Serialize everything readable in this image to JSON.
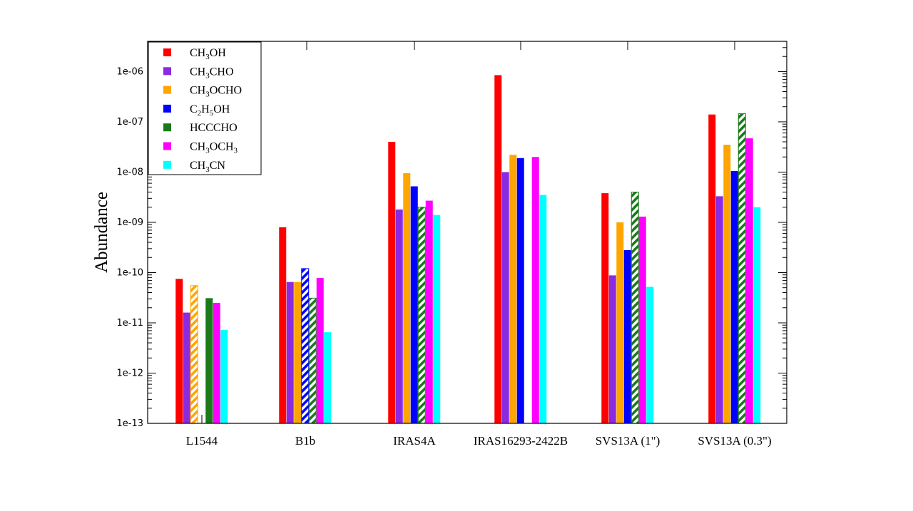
{
  "chart_data": {
    "type": "bar",
    "scale": "log",
    "ylabel": "Abundance",
    "xlabel": "",
    "ylim": [
      1e-13,
      4e-06
    ],
    "yticks": [
      {
        "value": 1e-13,
        "label": "1e-13"
      },
      {
        "value": 1e-12,
        "label": "1e-12"
      },
      {
        "value": 1e-11,
        "label": "1e-11"
      },
      {
        "value": 1e-10,
        "label": "1e-10"
      },
      {
        "value": 1e-09,
        "label": "1e-09"
      },
      {
        "value": 1e-08,
        "label": "1e-08"
      },
      {
        "value": 1e-07,
        "label": "1e-07"
      },
      {
        "value": 1e-06,
        "label": "1e-06"
      }
    ],
    "categories": [
      "L1544",
      "B1b",
      "IRAS4A",
      "IRAS16293-2422B",
      "SVS13A (1\")",
      "SVS13A (0.3\")"
    ],
    "legend_position": "top-left",
    "series": [
      {
        "name": "CH3OH",
        "label_parts": [
          [
            "CH",
            false
          ],
          [
            "3",
            true
          ],
          [
            "OH",
            false
          ]
        ],
        "color": "#ff0000",
        "values": [
          7.5e-11,
          8e-10,
          4e-08,
          8.5e-07,
          3.8e-09,
          1.4e-07
        ],
        "hatched": [
          false,
          false,
          false,
          false,
          false,
          false
        ]
      },
      {
        "name": "CH3CHO",
        "label_parts": [
          [
            "CH",
            false
          ],
          [
            "3",
            true
          ],
          [
            "CHO",
            false
          ]
        ],
        "color": "#8a2be2",
        "values": [
          1.6e-11,
          6.5e-11,
          1.8e-09,
          1e-08,
          8.8e-11,
          3.3e-09
        ],
        "hatched": [
          false,
          false,
          false,
          false,
          false,
          false
        ]
      },
      {
        "name": "CH3OCHO",
        "label_parts": [
          [
            "CH",
            false
          ],
          [
            "3",
            true
          ],
          [
            "OCHO",
            false
          ]
        ],
        "color": "#ffa500",
        "values": [
          5.5e-11,
          6.5e-11,
          9.5e-09,
          2.2e-08,
          1e-09,
          3.5e-08
        ],
        "hatched": [
          true,
          false,
          false,
          false,
          false,
          false
        ]
      },
      {
        "name": "C2H5OH",
        "label_parts": [
          [
            "C",
            false
          ],
          [
            "2",
            true
          ],
          [
            "H",
            false
          ],
          [
            "5",
            true
          ],
          [
            "OH",
            false
          ]
        ],
        "color": "#0000ff",
        "values": [
          null,
          1.2e-10,
          5.2e-09,
          1.9e-08,
          2.8e-10,
          1.05e-08
        ],
        "hatched": [
          false,
          true,
          false,
          false,
          false,
          false
        ]
      },
      {
        "name": "HCCCHO",
        "label_parts": [
          [
            "HCCCHO",
            false
          ]
        ],
        "color": "#1a7a1a",
        "values": [
          3.1e-11,
          3.1e-11,
          2e-09,
          null,
          4e-09,
          1.45e-07
        ],
        "hatched": [
          false,
          true,
          true,
          false,
          true,
          true
        ]
      },
      {
        "name": "CH3OCH3",
        "label_parts": [
          [
            "CH",
            false
          ],
          [
            "3",
            true
          ],
          [
            "OCH",
            false
          ],
          [
            "3",
            true
          ]
        ],
        "color": "#ff00ff",
        "values": [
          2.5e-11,
          7.8e-11,
          2.7e-09,
          2e-08,
          1.3e-09,
          4.7e-08
        ],
        "hatched": [
          false,
          false,
          false,
          false,
          false,
          false
        ]
      },
      {
        "name": "CH3CN",
        "label_parts": [
          [
            "CH",
            false
          ],
          [
            "3",
            true
          ],
          [
            "CN",
            false
          ]
        ],
        "color": "#00ffff",
        "values": [
          7.2e-12,
          6.5e-12,
          1.4e-09,
          3.5e-09,
          5.2e-11,
          2e-09
        ],
        "hatched": [
          false,
          false,
          false,
          false,
          false,
          false
        ]
      }
    ]
  }
}
